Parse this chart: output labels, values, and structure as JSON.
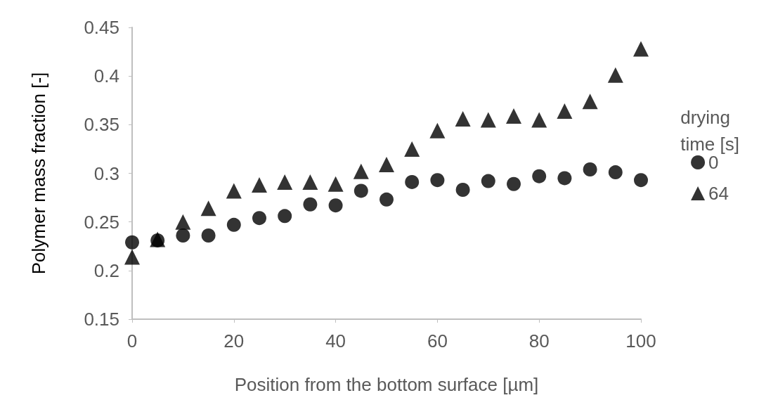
{
  "chart_data": {
    "type": "scatter",
    "xlabel": "Position from the bottom surface [µm]",
    "ylabel": "Polymer mass fraction [-]",
    "legend_title": "drying\ntime [s]",
    "legend": "right",
    "grid": false,
    "x": [
      0,
      5,
      10,
      15,
      20,
      25,
      30,
      35,
      40,
      45,
      50,
      55,
      60,
      65,
      70,
      75,
      80,
      85,
      90,
      95,
      100
    ],
    "xlim": [
      0,
      100
    ],
    "xticks": [
      0,
      20,
      40,
      60,
      80,
      100
    ],
    "ylim": [
      0.15,
      0.45
    ],
    "yticks": [
      0.15,
      0.2,
      0.25,
      0.3,
      0.35,
      0.4,
      0.45
    ],
    "series": [
      {
        "name": "0",
        "color": "#000000",
        "marker": "circle",
        "values": [
          0.229,
          0.231,
          0.236,
          0.236,
          0.247,
          0.254,
          0.256,
          0.268,
          0.267,
          0.282,
          0.273,
          0.291,
          0.293,
          0.283,
          0.292,
          0.289,
          0.297,
          0.295,
          0.304,
          0.301,
          0.293
        ]
      },
      {
        "name": "64",
        "color": "#000000",
        "marker": "triangle",
        "values": [
          0.214,
          0.232,
          0.25,
          0.264,
          0.282,
          0.288,
          0.291,
          0.291,
          0.289,
          0.302,
          0.309,
          0.325,
          0.344,
          0.356,
          0.355,
          0.359,
          0.355,
          0.364,
          0.374,
          0.401,
          0.428
        ]
      }
    ]
  }
}
